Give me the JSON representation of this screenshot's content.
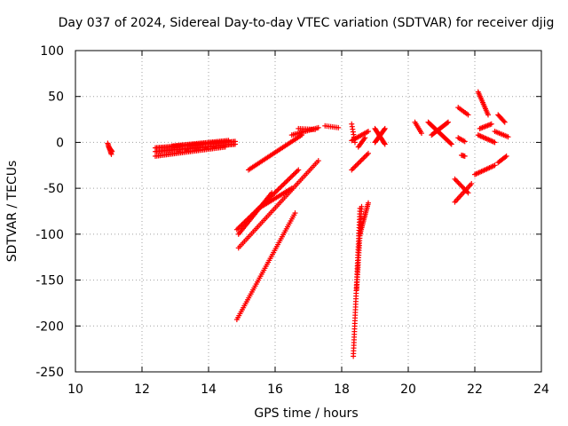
{
  "chart_data": {
    "type": "scatter",
    "title": "Day 037 of 2024, Sidereal Day-to-day VTEC variation (SDTVAR) for receiver djig",
    "xlabel": "GPS time / hours",
    "ylabel": "SDTVAR / TECUs",
    "xlim": [
      10,
      24
    ],
    "ylim": [
      -250,
      100
    ],
    "xticks": [
      "10",
      "12",
      "14",
      "16",
      "18",
      "20",
      "22",
      "24"
    ],
    "yticks": [
      "100",
      "50",
      "0",
      "-50",
      "-100",
      "-150",
      "-200",
      "-250"
    ],
    "grid": true,
    "marker": "plus",
    "color": "#ff0000",
    "segments": [
      {
        "from": [
          10.97,
          -1
        ],
        "to": [
          11.08,
          -13
        ],
        "n": 10
      },
      {
        "from": [
          11.0,
          -5
        ],
        "to": [
          11.1,
          -10
        ],
        "n": 8
      },
      {
        "from": [
          12.4,
          -6
        ],
        "to": [
          14.8,
          1
        ],
        "n": 60
      },
      {
        "from": [
          12.4,
          -10
        ],
        "to": [
          14.8,
          -2
        ],
        "n": 60
      },
      {
        "from": [
          12.4,
          -15
        ],
        "to": [
          14.5,
          -5
        ],
        "n": 45
      },
      {
        "from": [
          12.9,
          -4
        ],
        "to": [
          14.6,
          2
        ],
        "n": 40
      },
      {
        "from": [
          15.2,
          -30
        ],
        "to": [
          16.8,
          8
        ],
        "n": 40
      },
      {
        "from": [
          16.5,
          8
        ],
        "to": [
          17.3,
          16
        ],
        "n": 18
      },
      {
        "from": [
          16.7,
          15
        ],
        "to": [
          17.2,
          14
        ],
        "n": 10
      },
      {
        "from": [
          17.5,
          18
        ],
        "to": [
          17.9,
          16
        ],
        "n": 8
      },
      {
        "from": [
          14.85,
          -95
        ],
        "to": [
          16.7,
          -30
        ],
        "n": 50
      },
      {
        "from": [
          14.9,
          -100
        ],
        "to": [
          15.9,
          -55
        ],
        "n": 30
      },
      {
        "from": [
          14.9,
          -115
        ],
        "to": [
          17.3,
          -20
        ],
        "n": 55
      },
      {
        "from": [
          15.5,
          -72
        ],
        "to": [
          16.5,
          -50
        ],
        "n": 25
      },
      {
        "from": [
          14.85,
          -193
        ],
        "to": [
          16.6,
          -77
        ],
        "n": 55
      },
      {
        "from": [
          18.35,
          -233
        ],
        "to": [
          18.55,
          -72
        ],
        "n": 55
      },
      {
        "from": [
          18.45,
          -160
        ],
        "to": [
          18.6,
          -70
        ],
        "n": 35
      },
      {
        "from": [
          18.55,
          -100
        ],
        "to": [
          18.8,
          -66
        ],
        "n": 20
      },
      {
        "from": [
          18.3,
          -30
        ],
        "to": [
          18.8,
          -12
        ],
        "n": 14
      },
      {
        "from": [
          18.3,
          2
        ],
        "to": [
          18.8,
          12
        ],
        "n": 14
      },
      {
        "from": [
          18.3,
          20
        ],
        "to": [
          18.4,
          0
        ],
        "n": 8
      },
      {
        "from": [
          18.5,
          -5
        ],
        "to": [
          18.7,
          5
        ],
        "n": 8
      },
      {
        "from": [
          19.0,
          0
        ],
        "to": [
          19.3,
          15
        ],
        "n": 16
      },
      {
        "from": [
          19.0,
          15
        ],
        "to": [
          19.3,
          -2
        ],
        "n": 16
      },
      {
        "from": [
          20.2,
          22
        ],
        "to": [
          20.4,
          10
        ],
        "n": 8
      },
      {
        "from": [
          20.6,
          22
        ],
        "to": [
          21.3,
          -2
        ],
        "n": 26
      },
      {
        "from": [
          20.7,
          8
        ],
        "to": [
          21.2,
          22
        ],
        "n": 18
      },
      {
        "from": [
          21.5,
          38
        ],
        "to": [
          21.8,
          30
        ],
        "n": 8
      },
      {
        "from": [
          21.5,
          5
        ],
        "to": [
          21.7,
          1
        ],
        "n": 6
      },
      {
        "from": [
          21.7,
          -15
        ],
        "to": [
          21.6,
          -14
        ],
        "n": 4
      },
      {
        "from": [
          21.4,
          -40
        ],
        "to": [
          21.8,
          -55
        ],
        "n": 12
      },
      {
        "from": [
          21.4,
          -65
        ],
        "to": [
          21.9,
          -45
        ],
        "n": 14
      },
      {
        "from": [
          22.1,
          55
        ],
        "to": [
          22.4,
          30
        ],
        "n": 16
      },
      {
        "from": [
          22.15,
          15
        ],
        "to": [
          22.5,
          20
        ],
        "n": 10
      },
      {
        "from": [
          22.1,
          8
        ],
        "to": [
          22.6,
          0
        ],
        "n": 14
      },
      {
        "from": [
          22.0,
          -35
        ],
        "to": [
          22.6,
          -25
        ],
        "n": 16
      },
      {
        "from": [
          22.7,
          30
        ],
        "to": [
          22.9,
          22
        ],
        "n": 8
      },
      {
        "from": [
          22.6,
          12
        ],
        "to": [
          23.0,
          6
        ],
        "n": 10
      },
      {
        "from": [
          22.7,
          -22
        ],
        "to": [
          22.95,
          -15
        ],
        "n": 8
      }
    ]
  }
}
